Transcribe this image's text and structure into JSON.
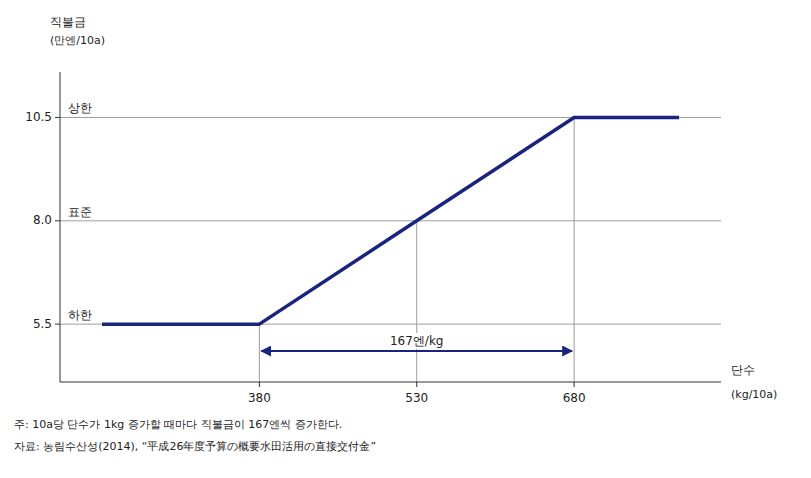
{
  "chart_data": {
    "type": "line",
    "x": [
      230,
      380,
      530,
      680,
      780
    ],
    "values": [
      5.5,
      5.5,
      8.0,
      10.5,
      10.5
    ],
    "color": "#1a237e",
    "xlim": [
      190,
      820
    ],
    "ylim": [
      4.1,
      11.6
    ],
    "xticks": [
      380,
      530,
      680
    ],
    "yticks": [
      5.5,
      {
        "value": 8.0,
        "label": "8.0"
      },
      10.5
    ],
    "xlabel": "단수",
    "xlabel2": "(kg/10a)",
    "ylabel": "직불금",
    "ylabel2": "(만엔/10a)",
    "hlines": [
      {
        "y": 10.5,
        "label": "상한"
      },
      {
        "y": 8.0,
        "label": "표준"
      },
      {
        "y": 5.5,
        "label": "하한"
      }
    ],
    "vlines": [
      {
        "x": 380,
        "y": 5.5
      },
      {
        "x": 530,
        "y": 8.0
      },
      {
        "x": 680,
        "y": 10.5
      }
    ],
    "arrow": {
      "x1": 380,
      "x2": 680,
      "y": 4.85,
      "label": "167엔/kg"
    },
    "notes": [
      "주: 10a당 단수가 1kg 증가할 때마다 직불금이 167엔씩 증가한다.",
      "자료: 농림수산성(2014), “平成26年度予算の概要水田活用の直接交付金”"
    ]
  }
}
